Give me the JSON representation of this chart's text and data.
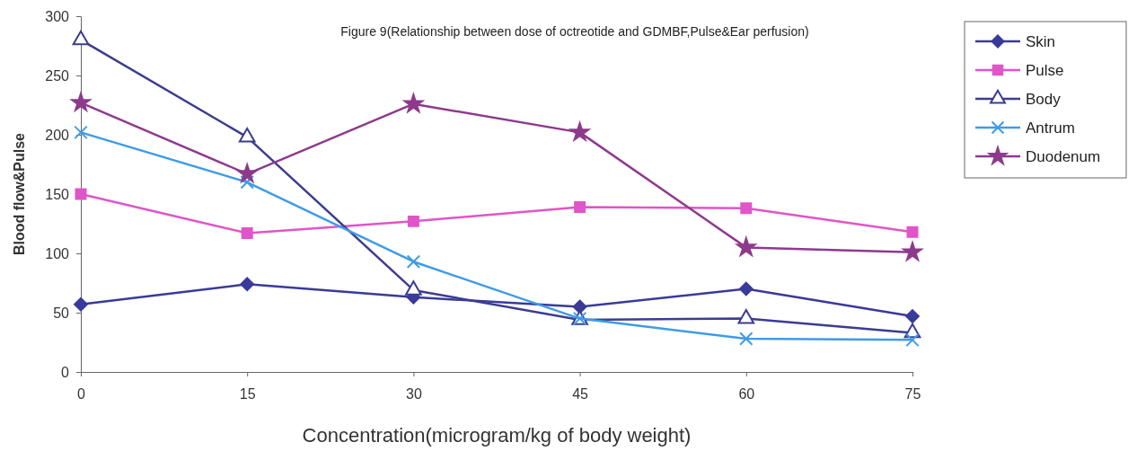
{
  "chart_data": {
    "type": "line",
    "title": "Figure 9(Relationship between dose of octreotide and GDMBF,Pulse&Ear perfusion)",
    "xlabel": "Concentration(microgram/kg of body weight)",
    "ylabel": "Blood flow&Pulse",
    "x": [
      0,
      15,
      30,
      45,
      60,
      75
    ],
    "xlim": [
      0,
      75
    ],
    "xticks": [
      0,
      15,
      30,
      45,
      60,
      75
    ],
    "ylim": [
      0,
      300
    ],
    "yticks": [
      0,
      50,
      100,
      150,
      200,
      250,
      300
    ],
    "grid": false,
    "legend": "top right",
    "series": [
      {
        "name": "Skin",
        "color": "#3a3a9a",
        "marker": "diamond",
        "values": [
          57,
          74,
          63,
          55,
          70,
          47
        ]
      },
      {
        "name": "Pulse",
        "color": "#e055c8",
        "marker": "square",
        "values": [
          150,
          117,
          127,
          139,
          138,
          118
        ]
      },
      {
        "name": "Body",
        "color": "#3c3c90",
        "marker": "triangle",
        "values": [
          280,
          198,
          69,
          44,
          45,
          33
        ]
      },
      {
        "name": "Antrum",
        "color": "#3f9be6",
        "marker": "cross",
        "values": [
          202,
          160,
          93,
          45,
          28,
          27
        ]
      },
      {
        "name": "Duodenum",
        "color": "#8e3a8c",
        "marker": "star",
        "values": [
          227,
          167,
          226,
          202,
          105,
          101
        ]
      }
    ]
  }
}
